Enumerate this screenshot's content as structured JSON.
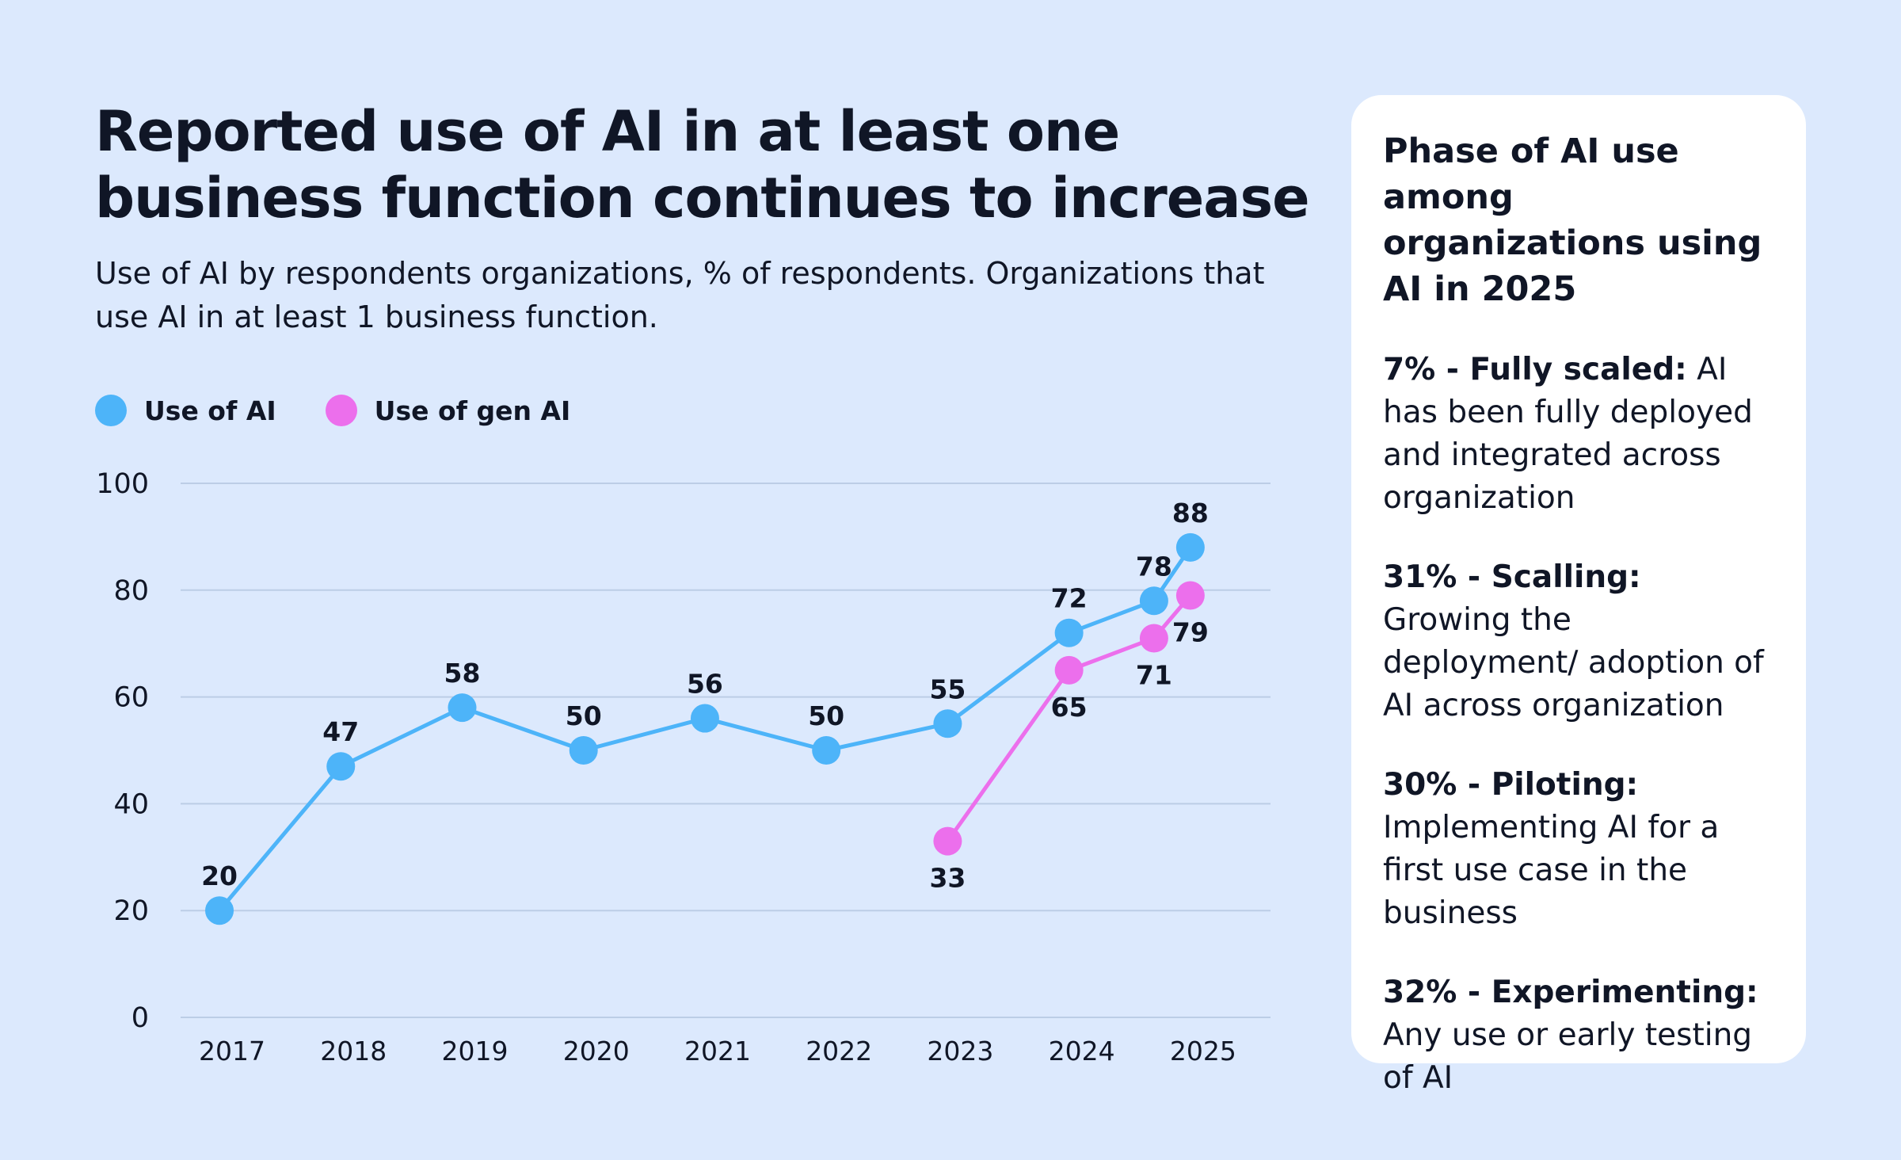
{
  "title": "Reported use of AI in at least one business function continues to increase",
  "subtitle": "Use of AI by respondents organizations, % of respondents. Organizations that use AI in at least 1 business function.",
  "colors": {
    "background": "#dce9fd",
    "ai": "#4db4f9",
    "gen_ai": "#ec6fec",
    "grid": "#bccde6",
    "panel": "#ffffff",
    "text": "#101626"
  },
  "chart_data": {
    "type": "line",
    "ylim": [
      0,
      100
    ],
    "yticks": [
      0,
      20,
      40,
      60,
      80,
      100
    ],
    "x_tick_labels": [
      "2017",
      "2018",
      "2019",
      "2020",
      "2021",
      "2022",
      "2023",
      "2024",
      "2025"
    ],
    "grid": true,
    "legend_position": "top-left",
    "series": [
      {
        "name": "Use of AI",
        "color": "#4db4f9",
        "points": [
          {
            "x": 2017,
            "y": 20,
            "label": "20"
          },
          {
            "x": 2018,
            "y": 47,
            "label": "47"
          },
          {
            "x": 2019,
            "y": 58,
            "label": "58"
          },
          {
            "x": 2020,
            "y": 50,
            "label": "50"
          },
          {
            "x": 2021,
            "y": 56,
            "label": "56"
          },
          {
            "x": 2022,
            "y": 50,
            "label": "50"
          },
          {
            "x": 2023,
            "y": 55,
            "label": "55"
          },
          {
            "x": 2024,
            "y": 72,
            "label": "72"
          },
          {
            "x": 2024.7,
            "y": 78,
            "label": "78"
          },
          {
            "x": 2025,
            "y": 88,
            "label": "88"
          }
        ]
      },
      {
        "name": "Use of gen AI",
        "color": "#ec6fec",
        "points": [
          {
            "x": 2023,
            "y": 33,
            "label": "33"
          },
          {
            "x": 2024,
            "y": 65,
            "label": "65"
          },
          {
            "x": 2024.7,
            "y": 71,
            "label": "71"
          },
          {
            "x": 2025,
            "y": 79,
            "label": "79"
          }
        ]
      }
    ]
  },
  "panel": {
    "title": "Phase of AI use among organizations using AI in 2025",
    "items": [
      {
        "head": "7% - Fully scaled:",
        "text": " AI has been fully deployed and integrated across organization"
      },
      {
        "head": "31% - Scalling:",
        "text": " Growing the deployment/ adoption of AI across organization"
      },
      {
        "head": "30% - Piloting:",
        "text": " Implementing AI for a first use case in the business"
      },
      {
        "head": "32% - Experimenting:",
        "text": " Any use or early testing of AI"
      }
    ]
  }
}
